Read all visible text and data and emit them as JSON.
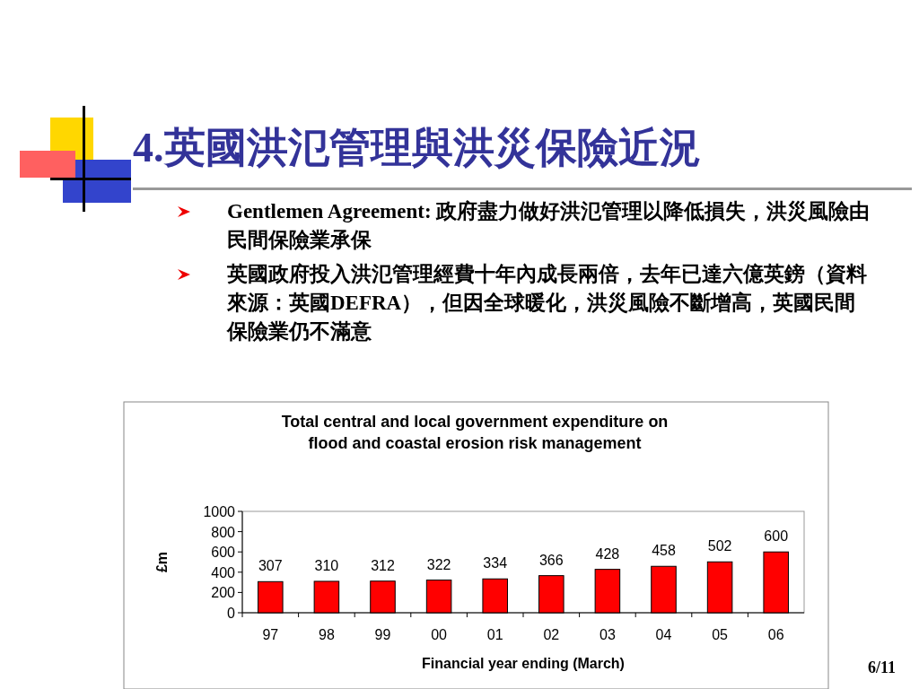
{
  "chart_data": {
    "type": "bar",
    "title": "Total central and local government expenditure on\nflood and coastal erosion risk management",
    "xlabel": "Financial year ending (March)",
    "ylabel": "£m",
    "categories": [
      "97",
      "98",
      "99",
      "00",
      "01",
      "02",
      "03",
      "04",
      "05",
      "06"
    ],
    "values": [
      307,
      310,
      312,
      322,
      334,
      366,
      428,
      458,
      502,
      600
    ],
    "color": "#ff0000",
    "ylim": [
      0,
      1000
    ],
    "yticks": [
      0,
      200,
      400,
      600,
      800,
      1000
    ],
    "grid": false,
    "data_labels": true,
    "annotations": [
      "4.英國洪氾管理與洪災保險近況",
      "Gentlemen Agreement: 政府盡力做好洪氾管理以降低損失，洪災風險由民間保險業承保",
      "英國政府投入洪氾管理經費十年內成長兩倍，去年已達六億英鎊（資料來源：英國DEFRA），但因全球暖化，洪災風險不斷增高，英國民間保險業仍不滿意",
      "6/11"
    ]
  }
}
